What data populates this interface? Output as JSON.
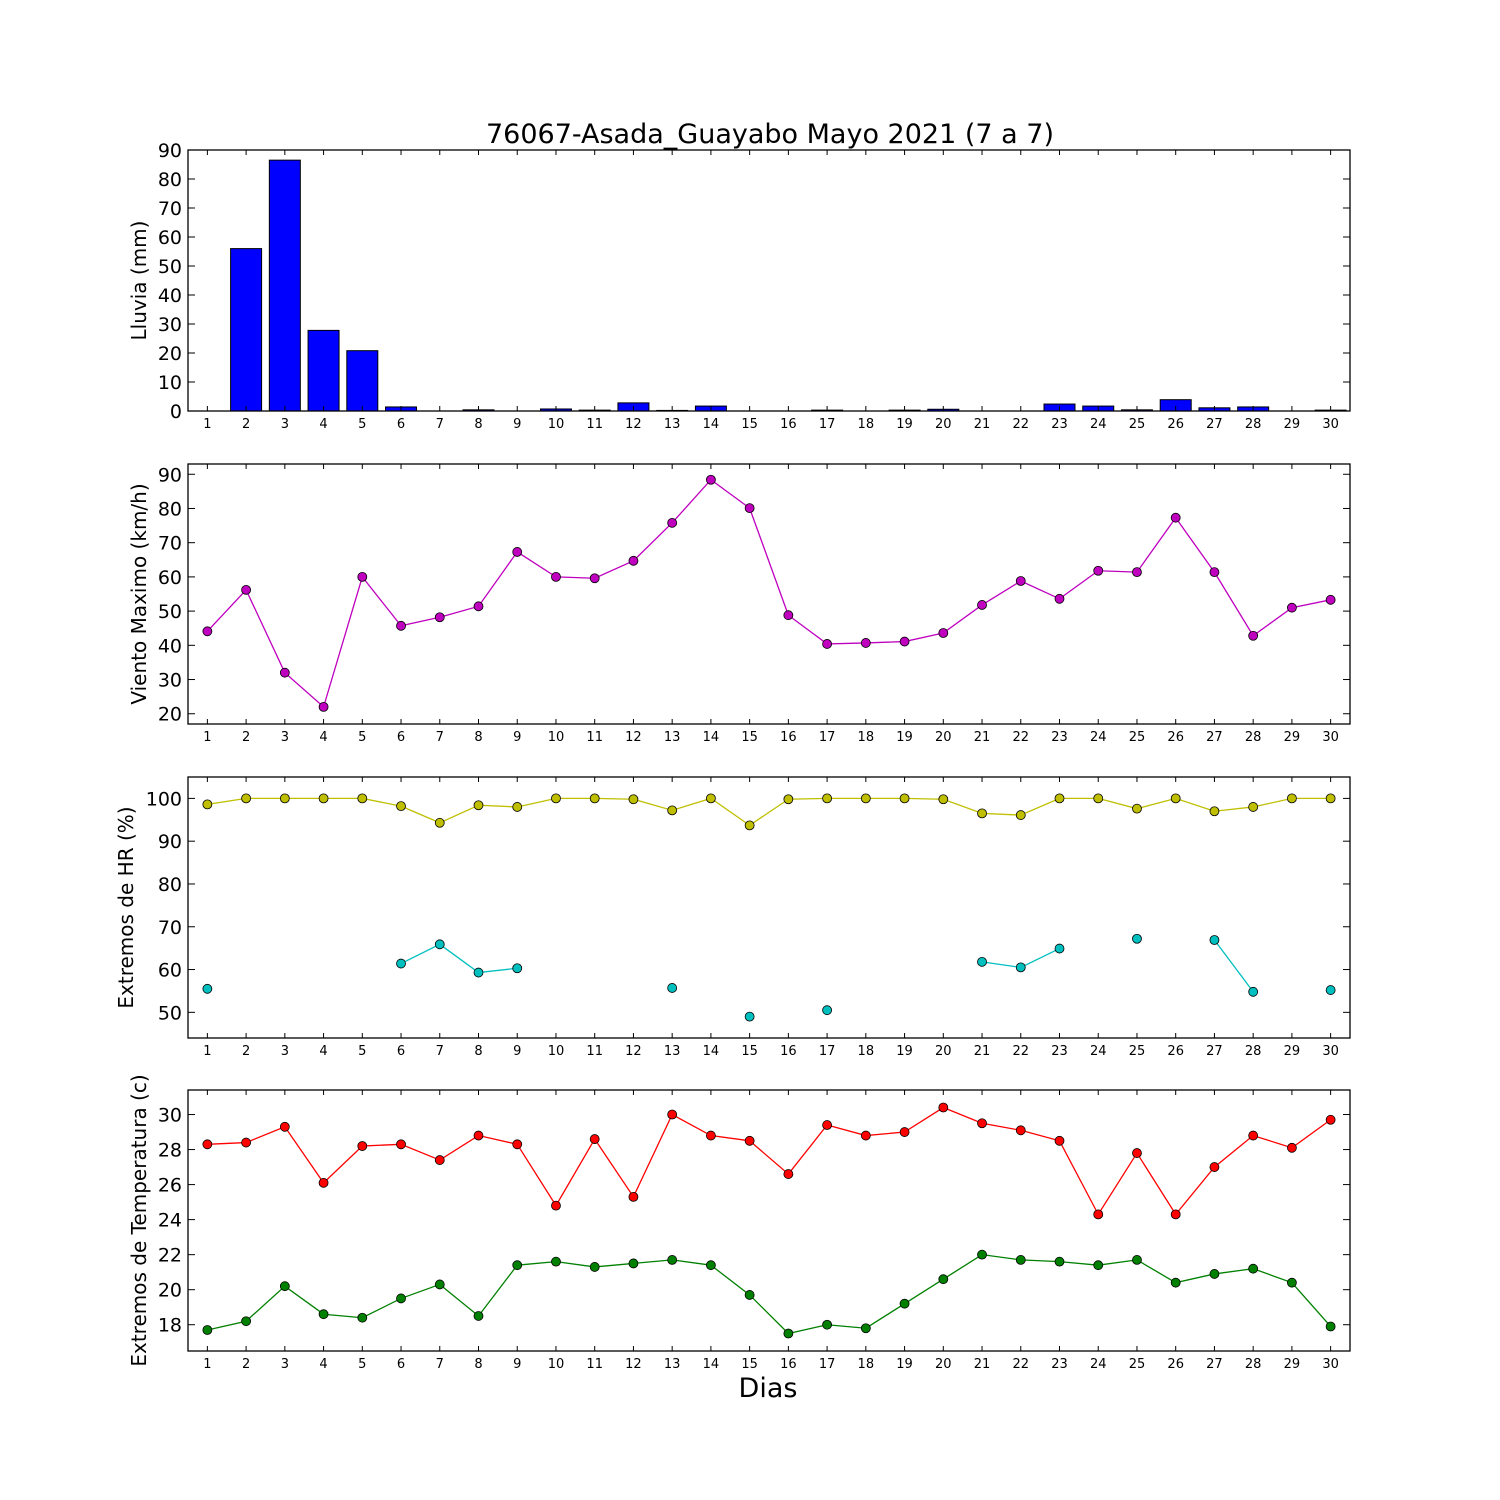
{
  "title": "76067-Asada_Guayabo Mayo 2021  (7 a 7)",
  "xlabel": "Dias",
  "chart_data": [
    {
      "type": "bar",
      "ylabel": "Lluvia (mm)",
      "ylim": [
        0,
        90
      ],
      "yticks": [
        0,
        10,
        20,
        30,
        40,
        50,
        60,
        70,
        80,
        90
      ],
      "x": [
        1,
        2,
        3,
        4,
        5,
        6,
        7,
        8,
        9,
        10,
        11,
        12,
        13,
        14,
        15,
        16,
        17,
        18,
        19,
        20,
        21,
        22,
        23,
        24,
        25,
        26,
        27,
        28,
        29,
        30
      ],
      "color": "#0000ff",
      "values": [
        0,
        56,
        86.5,
        27.8,
        20.8,
        1.4,
        0,
        0.4,
        0,
        0.7,
        0.3,
        2.8,
        0.2,
        1.7,
        0,
        0,
        0.3,
        0,
        0.3,
        0.6,
        0,
        0,
        2.4,
        1.7,
        0.4,
        3.9,
        1.1,
        1.4,
        0,
        0.3
      ]
    },
    {
      "type": "line",
      "ylabel": "Viento Maximo (km/h)",
      "ylim": [
        17,
        93
      ],
      "yticks": [
        20,
        30,
        40,
        50,
        60,
        70,
        80,
        90
      ],
      "x": [
        1,
        2,
        3,
        4,
        5,
        6,
        7,
        8,
        9,
        10,
        11,
        12,
        13,
        14,
        15,
        16,
        17,
        18,
        19,
        20,
        21,
        22,
        23,
        24,
        25,
        26,
        27,
        28,
        29,
        30
      ],
      "series": [
        {
          "color": "#bf00bf",
          "values": [
            44.1,
            56.2,
            32,
            22,
            60,
            45.7,
            48.2,
            51.4,
            67.3,
            60,
            59.6,
            64.7,
            75.8,
            88.4,
            80.1,
            48.8,
            40.4,
            40.7,
            41.1,
            43.6,
            51.8,
            58.8,
            53.6,
            61.8,
            61.4,
            77.3,
            61.4,
            42.8,
            51,
            53.3
          ]
        }
      ]
    },
    {
      "type": "line",
      "ylabel": "Extremos de HR (%)",
      "ylim": [
        44,
        105
      ],
      "yticks": [
        50,
        60,
        70,
        80,
        90,
        100
      ],
      "x": [
        1,
        2,
        3,
        4,
        5,
        6,
        7,
        8,
        9,
        10,
        11,
        12,
        13,
        14,
        15,
        16,
        17,
        18,
        19,
        20,
        21,
        22,
        23,
        24,
        25,
        26,
        27,
        28,
        29,
        30
      ],
      "series": [
        {
          "color": "#bfbf00",
          "values": [
            98.6,
            100,
            100,
            100,
            100,
            98.2,
            94.3,
            98.4,
            98,
            100,
            100,
            99.8,
            97.2,
            100,
            93.7,
            99.8,
            100,
            100,
            100,
            99.8,
            96.5,
            96.1,
            100,
            100,
            97.6,
            100,
            97,
            98,
            100,
            100
          ]
        },
        {
          "color": "#00bfbf",
          "values": [
            55.5,
            null,
            null,
            null,
            null,
            61.4,
            65.9,
            59.3,
            60.3,
            null,
            null,
            null,
            55.7,
            null,
            49,
            null,
            50.5,
            null,
            null,
            null,
            61.8,
            60.5,
            64.9,
            null,
            67.2,
            null,
            66.9,
            54.8,
            null,
            55.2
          ]
        }
      ]
    },
    {
      "type": "line",
      "ylabel": "Extremos de Temperatura (c)",
      "ylim": [
        16.5,
        31.4
      ],
      "yticks": [
        18,
        20,
        22,
        24,
        26,
        28,
        30
      ],
      "x": [
        1,
        2,
        3,
        4,
        5,
        6,
        7,
        8,
        9,
        10,
        11,
        12,
        13,
        14,
        15,
        16,
        17,
        18,
        19,
        20,
        21,
        22,
        23,
        24,
        25,
        26,
        27,
        28,
        29,
        30
      ],
      "series": [
        {
          "color": "#ff0000",
          "values": [
            28.3,
            28.4,
            29.3,
            26.1,
            28.2,
            28.3,
            27.4,
            28.8,
            28.3,
            24.8,
            28.6,
            25.3,
            30,
            28.8,
            28.5,
            26.6,
            29.4,
            28.8,
            29,
            30.4,
            29.5,
            29.1,
            28.5,
            24.3,
            27.8,
            24.3,
            27,
            28.8,
            28.1,
            29.7
          ]
        },
        {
          "color": "#008000",
          "values": [
            17.7,
            18.2,
            20.2,
            18.6,
            18.4,
            19.5,
            20.3,
            18.5,
            21.4,
            21.6,
            21.3,
            21.5,
            21.7,
            21.4,
            19.7,
            17.5,
            18,
            17.8,
            19.2,
            20.6,
            22,
            21.7,
            21.6,
            21.4,
            21.7,
            20.4,
            20.9,
            21.2,
            20.4,
            17.9
          ]
        }
      ]
    }
  ]
}
